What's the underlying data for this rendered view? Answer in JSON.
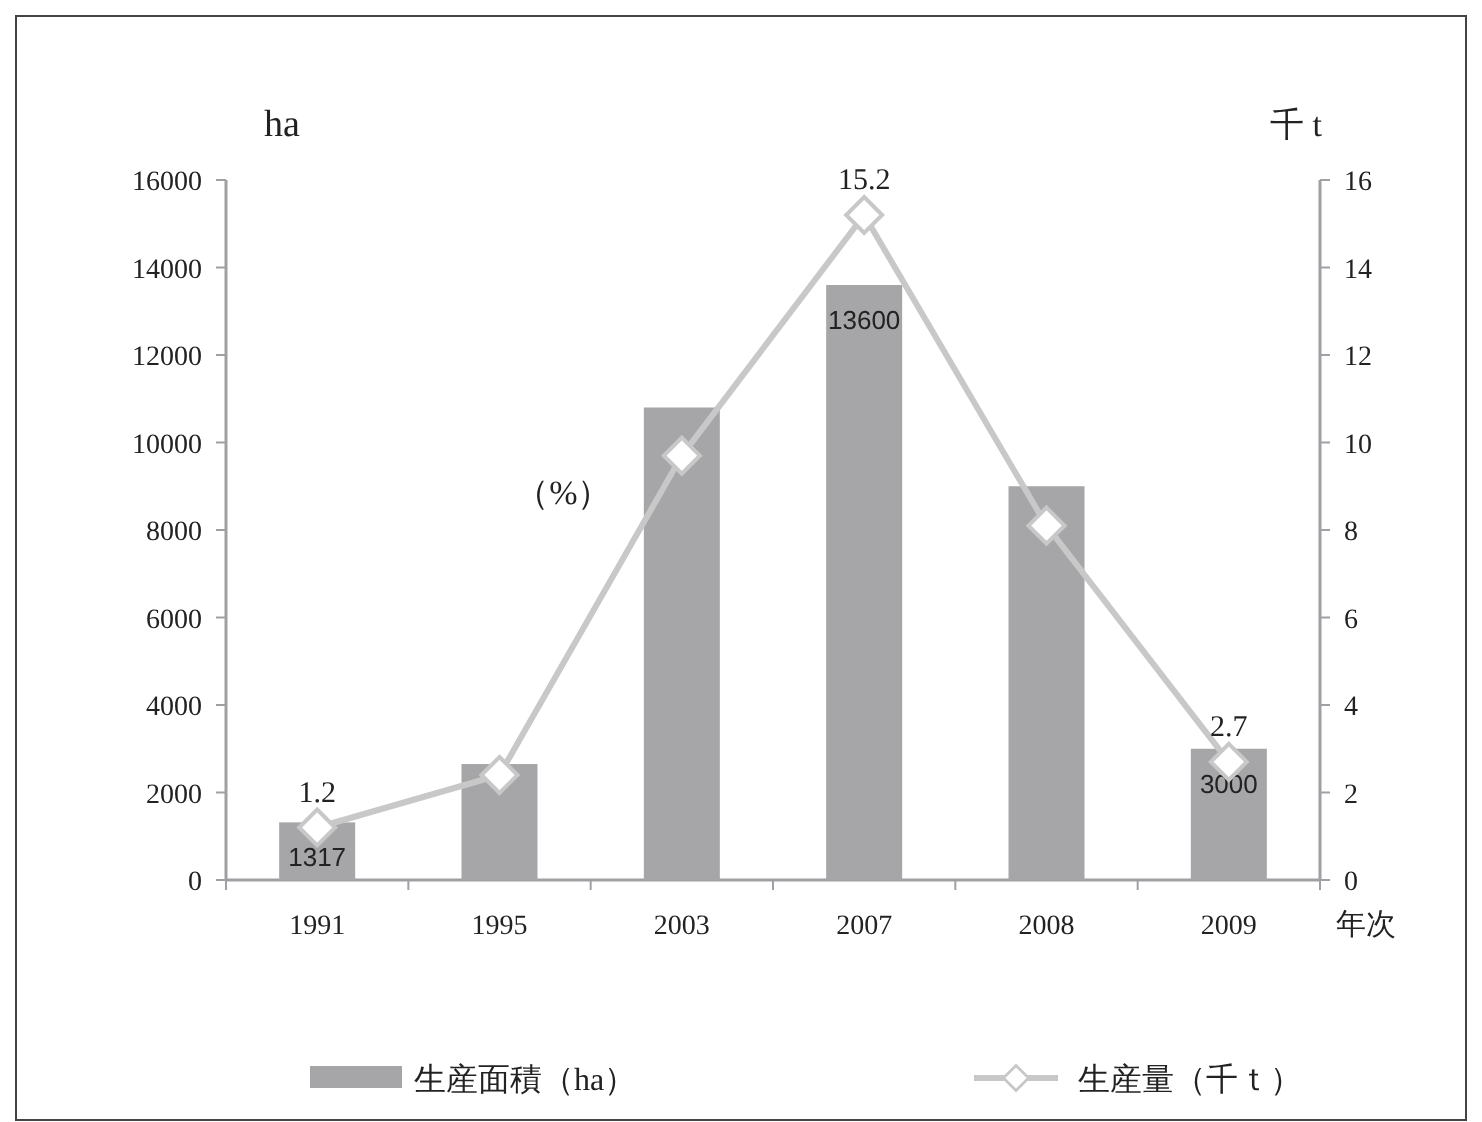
{
  "chart_data": {
    "type": "bar",
    "xlabel": "年次",
    "ylabel": "ha",
    "y2label": "千 t",
    "categories": [
      "1991",
      "1995",
      "2003",
      "2007",
      "2008",
      "2009"
    ],
    "series": [
      {
        "name": "生産面積（ha）",
        "color": "#a6a6a8",
        "values": [
          1317,
          2650,
          10800,
          13600,
          9000,
          3000
        ],
        "value_labels": [
          "1317",
          null,
          null,
          "13600",
          null,
          "3000"
        ]
      },
      {
        "name": "生産量（千ｔ）",
        "type": "line",
        "axis": "y2",
        "color": "#c8c8c8",
        "marker": "diamond",
        "values": [
          1.2,
          2.4,
          9.7,
          15.2,
          8.1,
          2.7
        ],
        "value_labels": [
          "1.2",
          null,
          null,
          "15.2",
          null,
          "2.7"
        ]
      }
    ],
    "ylim": [
      0,
      16000
    ],
    "yticks": [
      0,
      2000,
      4000,
      6000,
      8000,
      10000,
      12000,
      14000,
      16000
    ],
    "y2lim": [
      0,
      16
    ],
    "y2ticks": [
      0,
      2,
      4,
      6,
      8,
      10,
      12,
      14,
      16
    ],
    "annotations": [
      "（%）"
    ],
    "legend": "bottom",
    "grid": false
  }
}
